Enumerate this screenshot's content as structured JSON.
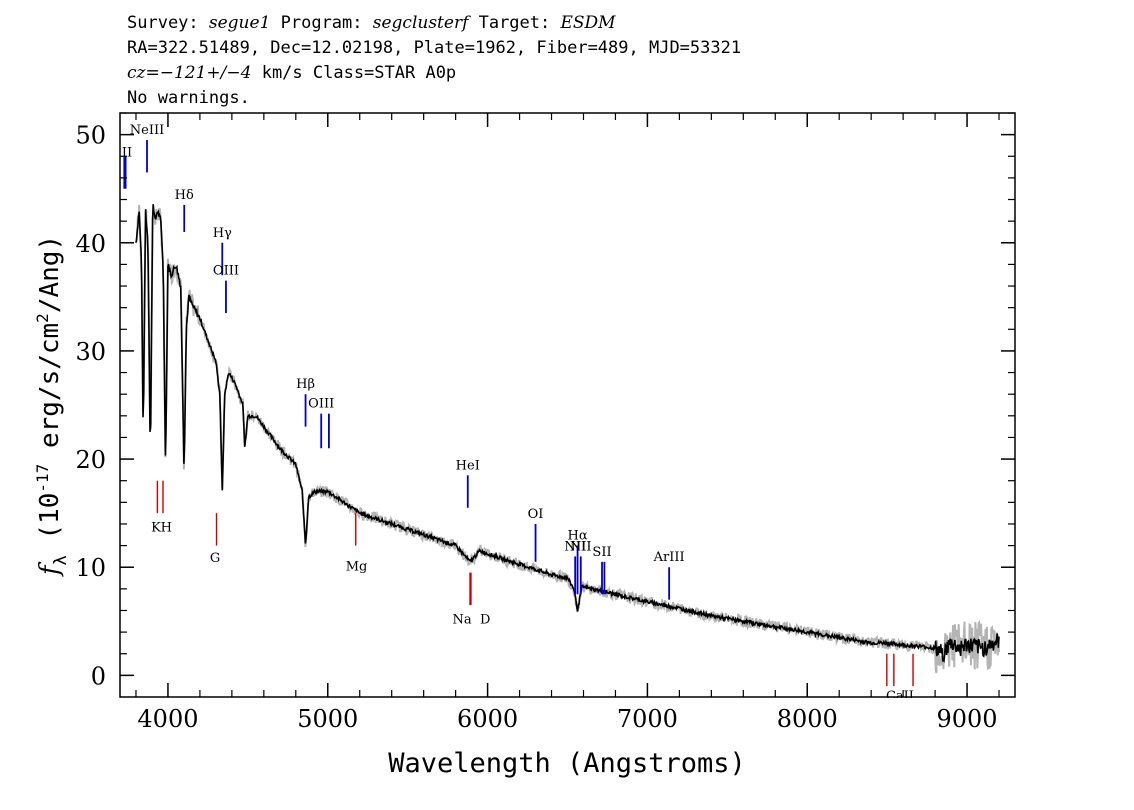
{
  "header": {
    "line1": {
      "survey_label": "Survey: ",
      "survey": "segue1",
      "program_label": " Program: ",
      "program": "segclusterf",
      "target_label": " Target: ",
      "target": "ESDM"
    },
    "line2": "RA=322.51489, Dec=12.02198, Plate=1962, Fiber=489, MJD=53321",
    "line3": {
      "cz_label": "cz=",
      "cz": "−121+/−4",
      "rest": " km/s Class=STAR A0p"
    },
    "line4": "No warnings."
  },
  "chart_data": {
    "type": "line",
    "xlabel": "Wavelength (Angstroms)",
    "ylabel": "f_λ (10^-17 erg/s/cm^2/Ang)",
    "xlim": [
      3700,
      9300
    ],
    "ylim": [
      -2,
      52
    ],
    "xticks": [
      4000,
      5000,
      6000,
      7000,
      8000,
      9000
    ],
    "yticks": [
      0,
      10,
      20,
      30,
      40,
      50
    ],
    "series": [
      {
        "style": "black flux with gray noise band",
        "x": [
          3800,
          3820,
          3835,
          3845,
          3860,
          3875,
          3890,
          3905,
          3920,
          3935,
          3955,
          3970,
          3985,
          4000,
          4020,
          4050,
          4080,
          4101,
          4115,
          4130,
          4160,
          4200,
          4250,
          4300,
          4325,
          4340,
          4355,
          4380,
          4420,
          4470,
          4480,
          4500,
          4550,
          4600,
          4700,
          4800,
          4840,
          4861,
          4880,
          4920,
          5000,
          5100,
          5200,
          5300,
          5400,
          5500,
          5600,
          5700,
          5800,
          5890,
          5950,
          6050,
          6150,
          6300,
          6400,
          6500,
          6540,
          6563,
          6590,
          6650,
          6800,
          7000,
          7200,
          7400,
          7600,
          7800,
          8000,
          8200,
          8400,
          8500,
          8600,
          8700,
          8800,
          8850,
          8900,
          8950,
          9000,
          9100,
          9200
        ],
        "y": [
          40,
          43,
          38,
          22,
          43,
          40,
          20,
          44,
          42,
          43,
          42,
          38,
          19,
          38,
          37,
          38,
          36,
          19,
          32,
          35,
          34,
          33,
          31,
          29,
          26,
          17,
          26,
          28,
          27,
          25,
          21,
          24,
          24,
          23,
          21,
          19.5,
          17,
          12,
          16.5,
          17,
          17,
          16,
          15,
          14.5,
          14,
          13.5,
          13,
          12.5,
          12,
          10.5,
          11.5,
          11,
          10.5,
          9.8,
          9.3,
          9,
          8,
          6,
          8.2,
          8,
          7.5,
          6.8,
          6.2,
          5.5,
          5,
          4.5,
          4,
          3.5,
          3,
          3,
          2.8,
          2.7,
          2.5,
          2,
          3,
          2.5,
          2.8,
          2.5,
          3.2
        ]
      }
    ],
    "emission_lines": [
      {
        "label": "NeIII",
        "x": 3869,
        "y1": 46.5,
        "y2": 49.5
      },
      {
        "label": "Hδ",
        "x": 4102,
        "y1": 41,
        "y2": 43.5
      },
      {
        "label": "Hγ",
        "x": 4340,
        "y1": 37,
        "y2": 40
      },
      {
        "label": "OIII",
        "x": 4363,
        "y1": 33.5,
        "y2": 36.5
      },
      {
        "label": "Hβ",
        "x": 4861,
        "y1": 23,
        "y2": 26
      },
      {
        "label": "OIII",
        "x": 4959,
        "y1": 21,
        "y2": 24.2
      },
      {
        "label": "",
        "x": 5007,
        "y1": 21,
        "y2": 24.2
      },
      {
        "label": "HeI",
        "x": 5876,
        "y1": 15.5,
        "y2": 18.5
      },
      {
        "label": "OI",
        "x": 6300,
        "y1": 10.5,
        "y2": 14
      },
      {
        "label": "NII",
        "x": 6548,
        "y1": 7.5,
        "y2": 11
      },
      {
        "label": "Hα",
        "x": 6563,
        "y1": 7.5,
        "y2": 12
      },
      {
        "label": "NII",
        "x": 6583,
        "y1": 7.5,
        "y2": 11
      },
      {
        "label": "SII",
        "x": 6716,
        "y1": 7.5,
        "y2": 10.5
      },
      {
        "label": "",
        "x": 6731,
        "y1": 7.5,
        "y2": 10.5
      },
      {
        "label": "ArIII",
        "x": 7136,
        "y1": 7,
        "y2": 10
      },
      {
        "label": "",
        "x": 3727,
        "y1": 45,
        "y2": 48
      },
      {
        "label": "",
        "x": 3735,
        "y1": 45,
        "y2": 48
      }
    ],
    "emission_edge_label": {
      "label": "II",
      "x": 3712,
      "y": 48
    },
    "absorption_lines": [
      {
        "x": 3934,
        "y1": 15,
        "y2": 18
      },
      {
        "x": 3969,
        "y1": 15,
        "y2": 18
      },
      {
        "x": 4304,
        "y1": 12,
        "y2": 15
      },
      {
        "x": 5175,
        "y1": 12,
        "y2": 15
      },
      {
        "x": 5890,
        "y1": 6.5,
        "y2": 9.5
      },
      {
        "x": 5896,
        "y1": 6.5,
        "y2": 9.5
      },
      {
        "x": 8498,
        "y1": -1,
        "y2": 2
      },
      {
        "x": 8542,
        "y1": -1,
        "y2": 2
      },
      {
        "x": 8662,
        "y1": -1,
        "y2": 2
      }
    ],
    "absorption_labels": [
      {
        "label": "K",
        "x": 3925,
        "y": 13.3
      },
      {
        "label": "H",
        "x": 3990,
        "y": 13.3
      },
      {
        "label": "G",
        "x": 4295,
        "y": 10.5
      },
      {
        "label": "Mg",
        "x": 5180,
        "y": 9.7
      },
      {
        "label": "Na",
        "x": 5840,
        "y": 4.8
      },
      {
        "label": "D",
        "x": 5985,
        "y": 4.8
      },
      {
        "label": "CaII",
        "x": 8580,
        "y": -2.3
      }
    ],
    "colors": {
      "flux": "#000000",
      "noise": "#b4b4b4",
      "emission": "#0000cc",
      "absorption": "#cc0000"
    }
  }
}
